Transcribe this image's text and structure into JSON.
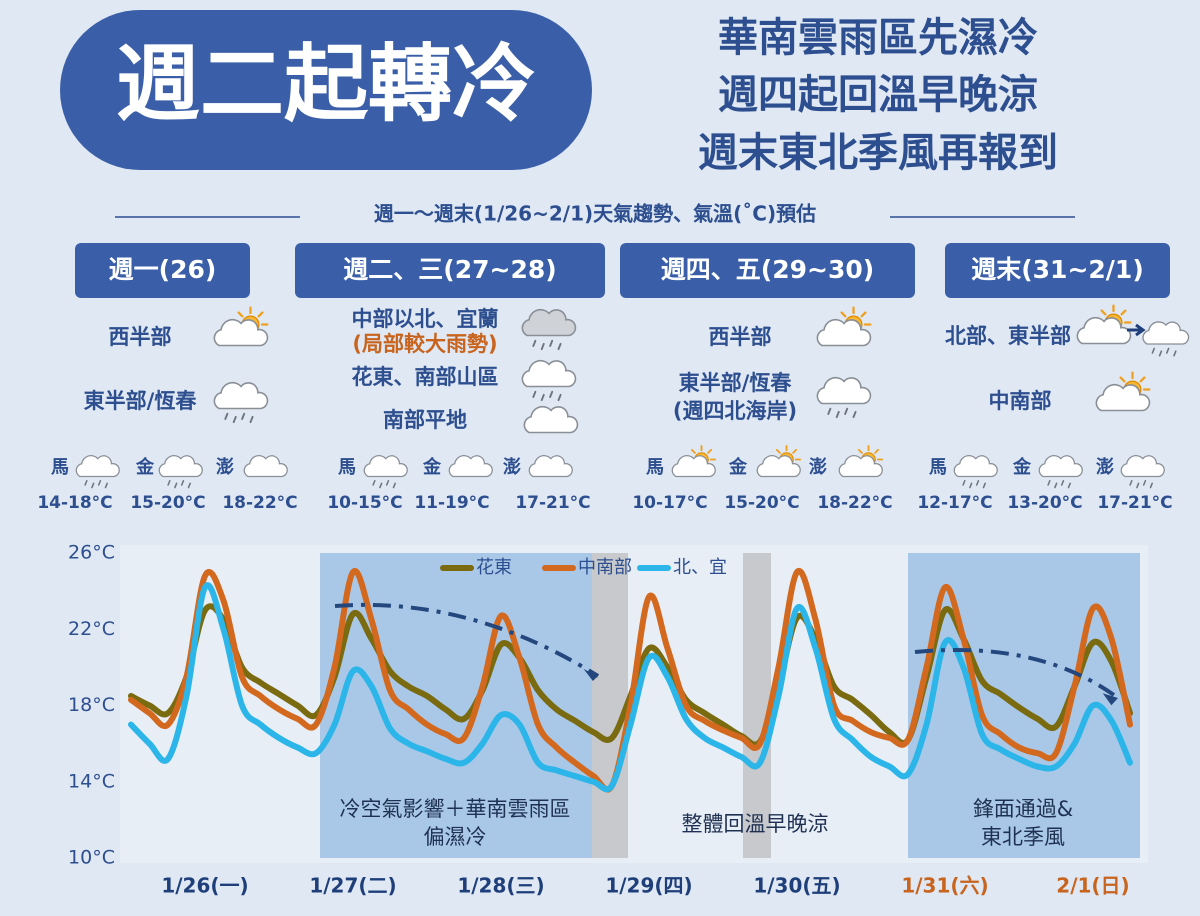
{
  "header": {
    "badge": "週二起轉冷",
    "headline": [
      "華南雲雨區先濕冷",
      "週四起回溫早晚涼",
      "週末東北季風再報到"
    ]
  },
  "section_title": "週一～週末(1/26~2/1)天氣趨勢、氣溫(˚C)預估",
  "panels": [
    {
      "title": "週一(26)",
      "regions": [
        {
          "name": "西半部"
        },
        {
          "name": "東半部/恆春"
        }
      ],
      "islands": [
        {
          "name": "馬",
          "temp": "14-18°C"
        },
        {
          "name": "金",
          "temp": "15-20°C"
        },
        {
          "name": "澎",
          "temp": "18-22°C"
        }
      ]
    },
    {
      "title": "週二、三(27~28)",
      "regions": [
        {
          "name": "中部以北、宜蘭",
          "note": "(局部較大雨勢)"
        },
        {
          "name": "花東、南部山區"
        },
        {
          "name": "南部平地"
        }
      ],
      "islands": [
        {
          "name": "馬",
          "temp": "10-15°C"
        },
        {
          "name": "金",
          "temp": "11-19°C"
        },
        {
          "name": "澎",
          "temp": "17-21°C"
        }
      ]
    },
    {
      "title": "週四、五(29~30)",
      "regions": [
        {
          "name": "西半部"
        },
        {
          "name": "東半部/恆春",
          "note": "(週四北海岸)"
        }
      ],
      "islands": [
        {
          "name": "馬",
          "temp": "10-17°C"
        },
        {
          "name": "金",
          "temp": "15-20°C"
        },
        {
          "name": "澎",
          "temp": "18-22°C"
        }
      ]
    },
    {
      "title": "週末(31~2/1)",
      "regions": [
        {
          "name": "北部、東半部"
        },
        {
          "name": "中南部"
        }
      ],
      "islands": [
        {
          "name": "馬",
          "temp": "12-17°C"
        },
        {
          "name": "金",
          "temp": "13-20°C"
        },
        {
          "name": "澎",
          "temp": "17-21°C"
        }
      ]
    }
  ],
  "chart_data": {
    "type": "line",
    "categories": [
      null,
      null,
      null,
      null,
      "1/26(一)",
      null,
      null,
      null,
      null,
      null,
      null,
      null,
      "1/27(二)",
      null,
      null,
      null,
      null,
      null,
      null,
      null,
      "1/28(三)",
      null,
      null,
      null,
      null,
      null,
      null,
      null,
      "1/29(四)",
      null,
      null,
      null,
      null,
      null,
      null,
      null,
      "1/30(五)",
      null,
      null,
      null,
      null,
      null,
      null,
      null,
      "1/31(六)",
      null,
      null,
      null,
      null,
      null,
      null,
      null,
      "2/1(日)",
      null,
      null
    ],
    "category_colors": [
      null,
      null,
      null,
      null,
      "#1f3f7a",
      null,
      null,
      null,
      null,
      null,
      null,
      null,
      "#1f3f7a",
      null,
      null,
      null,
      null,
      null,
      null,
      null,
      "#1f3f7a",
      null,
      null,
      null,
      null,
      null,
      null,
      null,
      "#1f3f7a",
      null,
      null,
      null,
      null,
      null,
      null,
      null,
      "#1f3f7a",
      null,
      null,
      null,
      null,
      null,
      null,
      null,
      "#c8641e",
      null,
      null,
      null,
      null,
      null,
      null,
      null,
      "#c8641e",
      null,
      null
    ],
    "series": [
      {
        "name": "花東",
        "color": "#7a6a10",
        "values": [
          18.5,
          18.0,
          17.6,
          19.5,
          23.0,
          22.5,
          20.0,
          19.2,
          18.6,
          18.0,
          17.5,
          19.5,
          22.8,
          21.5,
          19.8,
          19.0,
          18.5,
          17.8,
          17.3,
          18.8,
          21.2,
          20.5,
          18.8,
          17.8,
          17.2,
          16.6,
          16.3,
          18.5,
          21.0,
          20.0,
          18.3,
          17.6,
          17.0,
          16.4,
          16.1,
          19.0,
          22.6,
          21.5,
          19.0,
          18.3,
          17.5,
          16.6,
          16.2,
          19.5,
          23.0,
          21.5,
          19.3,
          18.6,
          17.9,
          17.3,
          16.9,
          19.0,
          21.3,
          20.3,
          17.6
        ]
      },
      {
        "name": "中南部",
        "color": "#d2691e",
        "values": [
          18.3,
          17.6,
          17.0,
          19.5,
          24.8,
          23.5,
          19.5,
          18.5,
          17.8,
          17.3,
          17.0,
          20.0,
          25.0,
          22.5,
          18.8,
          17.8,
          17.0,
          16.5,
          16.3,
          19.0,
          22.7,
          20.5,
          17.0,
          15.8,
          15.0,
          14.3,
          13.8,
          18.0,
          23.7,
          21.0,
          18.0,
          17.2,
          16.7,
          16.3,
          16.0,
          20.0,
          25.0,
          22.5,
          18.0,
          17.2,
          16.6,
          16.3,
          16.2,
          20.0,
          24.2,
          21.5,
          17.5,
          16.5,
          15.8,
          15.5,
          15.5,
          19.0,
          23.1,
          21.5,
          17.0
        ]
      },
      {
        "name": "北、宜",
        "color": "#2bb5e8",
        "values": [
          17.0,
          16.0,
          15.2,
          18.5,
          24.2,
          22.0,
          18.0,
          17.0,
          16.3,
          15.8,
          15.5,
          17.0,
          19.8,
          19.0,
          16.8,
          16.0,
          15.6,
          15.2,
          15.0,
          16.0,
          17.5,
          17.0,
          15.0,
          14.6,
          14.3,
          14.0,
          13.8,
          17.0,
          20.5,
          19.5,
          17.3,
          16.3,
          15.8,
          15.3,
          15.0,
          18.5,
          23.1,
          21.0,
          17.3,
          16.2,
          15.3,
          14.8,
          14.4,
          17.0,
          21.3,
          20.0,
          16.5,
          15.7,
          15.2,
          14.8,
          14.8,
          16.0,
          18.0,
          17.2,
          15.0
        ]
      }
    ],
    "ylim": [
      10,
      26
    ],
    "yticks": [
      {
        "value": 10,
        "label": "10°C"
      },
      {
        "value": 14,
        "label": "14°C"
      },
      {
        "value": 18,
        "label": "18°C"
      },
      {
        "value": 22,
        "label": "22°C"
      },
      {
        "value": 26,
        "label": "26°C"
      }
    ],
    "legend": "top",
    "annotations": [
      [
        "冷空氣影響＋華南雲雨區",
        "偏濕冷"
      ],
      [
        "整體回溫早晚涼"
      ],
      [
        "鋒面通過&",
        "東北季風"
      ]
    ]
  }
}
